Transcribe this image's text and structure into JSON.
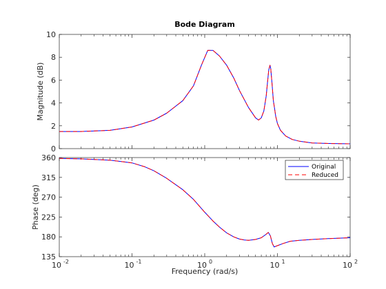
{
  "chart_data": {
    "type": "line",
    "title": "Bode Diagram",
    "xlabel": "Frequency  (rad/s)",
    "xscale": "log",
    "xlim": [
      0.01,
      100
    ],
    "x_ticks": [
      0.01,
      0.1,
      1,
      10,
      100
    ],
    "x_tick_labels": [
      {
        "base": "10",
        "exp": "-2"
      },
      {
        "base": "10",
        "exp": "-1"
      },
      {
        "base": "10",
        "exp": "0"
      },
      {
        "base": "10",
        "exp": "1"
      },
      {
        "base": "10",
        "exp": "2"
      }
    ],
    "grid": false,
    "legend_position": "top-right",
    "series_colors": {
      "Original": "#0000ff",
      "Reduced": "#ff0000"
    },
    "series_styles": {
      "Original": "solid",
      "Reduced": "dashed"
    },
    "panels": [
      {
        "id": "magnitude",
        "ylabel": "Magnitude (dB)",
        "ylim": [
          0,
          10
        ],
        "y_ticks": [
          0,
          2,
          4,
          6,
          8,
          10
        ],
        "series": [
          {
            "name": "Original",
            "x": [
              0.01,
              0.02,
              0.05,
              0.1,
              0.2,
              0.3,
              0.5,
              0.7,
              0.9,
              1.1,
              1.3,
              1.6,
              2,
              2.5,
              3,
              4,
              5,
              5.5,
              6,
              6.5,
              7,
              7.3,
              7.6,
              7.9,
              8.1,
              8.4,
              8.8,
              9.5,
              10,
              11,
              13,
              16,
              20,
              30,
              50,
              100
            ],
            "y": [
              1.5,
              1.5,
              1.6,
              1.9,
              2.5,
              3.1,
              4.2,
              5.5,
              7.3,
              8.6,
              8.6,
              8.1,
              7.3,
              6.2,
              5.1,
              3.6,
              2.7,
              2.5,
              2.7,
              3.3,
              4.6,
              5.8,
              6.9,
              7.3,
              7.0,
              5.8,
              4.2,
              2.8,
              2.2,
              1.6,
              1.1,
              0.8,
              0.65,
              0.5,
              0.45,
              0.42
            ]
          },
          {
            "name": "Reduced",
            "x": [
              0.01,
              0.02,
              0.05,
              0.1,
              0.2,
              0.3,
              0.5,
              0.7,
              0.9,
              1.1,
              1.3,
              1.6,
              2,
              2.5,
              3,
              4,
              5,
              5.5,
              6,
              6.5,
              7,
              7.3,
              7.6,
              7.9,
              8.1,
              8.4,
              8.8,
              9.5,
              10,
              11,
              13,
              16,
              20,
              30,
              50,
              100
            ],
            "y": [
              1.5,
              1.5,
              1.6,
              1.9,
              2.5,
              3.1,
              4.2,
              5.5,
              7.3,
              8.6,
              8.6,
              8.1,
              7.3,
              6.2,
              5.1,
              3.6,
              2.7,
              2.5,
              2.7,
              3.3,
              4.6,
              5.8,
              6.9,
              7.3,
              7.0,
              5.8,
              4.2,
              2.8,
              2.2,
              1.6,
              1.1,
              0.8,
              0.65,
              0.5,
              0.45,
              0.42
            ]
          }
        ]
      },
      {
        "id": "phase",
        "ylabel": "Phase (deg)",
        "ylim": [
          135,
          360
        ],
        "y_ticks": [
          135,
          180,
          225,
          270,
          315,
          360
        ],
        "legend": [
          "Original",
          "Reduced"
        ],
        "series": [
          {
            "name": "Original",
            "x": [
              0.01,
              0.02,
              0.05,
              0.1,
              0.15,
              0.2,
              0.3,
              0.5,
              0.7,
              1,
              1.3,
              1.6,
              2,
              2.5,
              3,
              3.5,
              4,
              5,
              6,
              7,
              7.5,
              8,
              8.5,
              9,
              10,
              12,
              15,
              20,
              30,
              50,
              100
            ],
            "y": [
              358,
              357,
              354,
              348,
              339,
              330,
              313,
              287,
              265,
              236,
              216,
              202,
              189,
              180,
              175,
              173,
              172,
              174,
              178,
              186,
              190,
              182,
              165,
              157,
              160,
              165,
              170,
              172,
              174,
              176,
              178
            ]
          },
          {
            "name": "Reduced",
            "x": [
              0.01,
              0.02,
              0.05,
              0.1,
              0.15,
              0.2,
              0.3,
              0.5,
              0.7,
              1,
              1.3,
              1.6,
              2,
              2.5,
              3,
              3.5,
              4,
              5,
              6,
              7,
              7.5,
              8,
              8.5,
              9,
              10,
              12,
              15,
              20,
              30,
              50,
              100
            ],
            "y": [
              358,
              357,
              354,
              348,
              339,
              330,
              313,
              287,
              265,
              236,
              216,
              202,
              189,
              180,
              175,
              173,
              172,
              174,
              178,
              186,
              190,
              182,
              165,
              157,
              160,
              165,
              170,
              172,
              174,
              176,
              178
            ]
          }
        ]
      }
    ]
  }
}
